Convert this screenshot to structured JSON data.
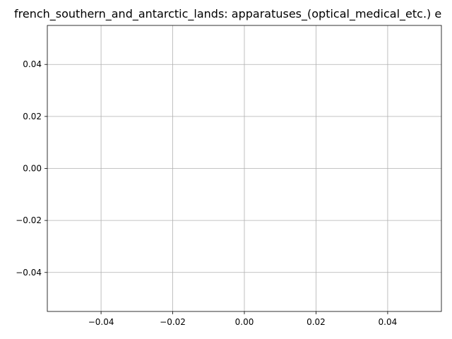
{
  "chart_data": {
    "type": "line",
    "title": "french_southern_and_antarctic_lands: apparatuses_(optical_medical_etc.) e",
    "xlabel": "",
    "ylabel": "",
    "xlim": [
      -0.055,
      0.055
    ],
    "ylim": [
      -0.055,
      0.055
    ],
    "xticks": [
      -0.04,
      -0.02,
      0.0,
      0.02,
      0.04
    ],
    "yticks": [
      -0.04,
      -0.02,
      0.0,
      0.02,
      0.04
    ],
    "xtick_labels": [
      "−0.04",
      "−0.02",
      "0.00",
      "0.02",
      "0.04"
    ],
    "ytick_labels": [
      "−0.04",
      "−0.02",
      "0.00",
      "0.02",
      "0.04"
    ],
    "grid": true,
    "series": [
      {
        "x": [],
        "y": []
      }
    ],
    "colors": {
      "axis": "#000000",
      "grid": "#b0b0b0",
      "background": "#ffffff"
    }
  }
}
